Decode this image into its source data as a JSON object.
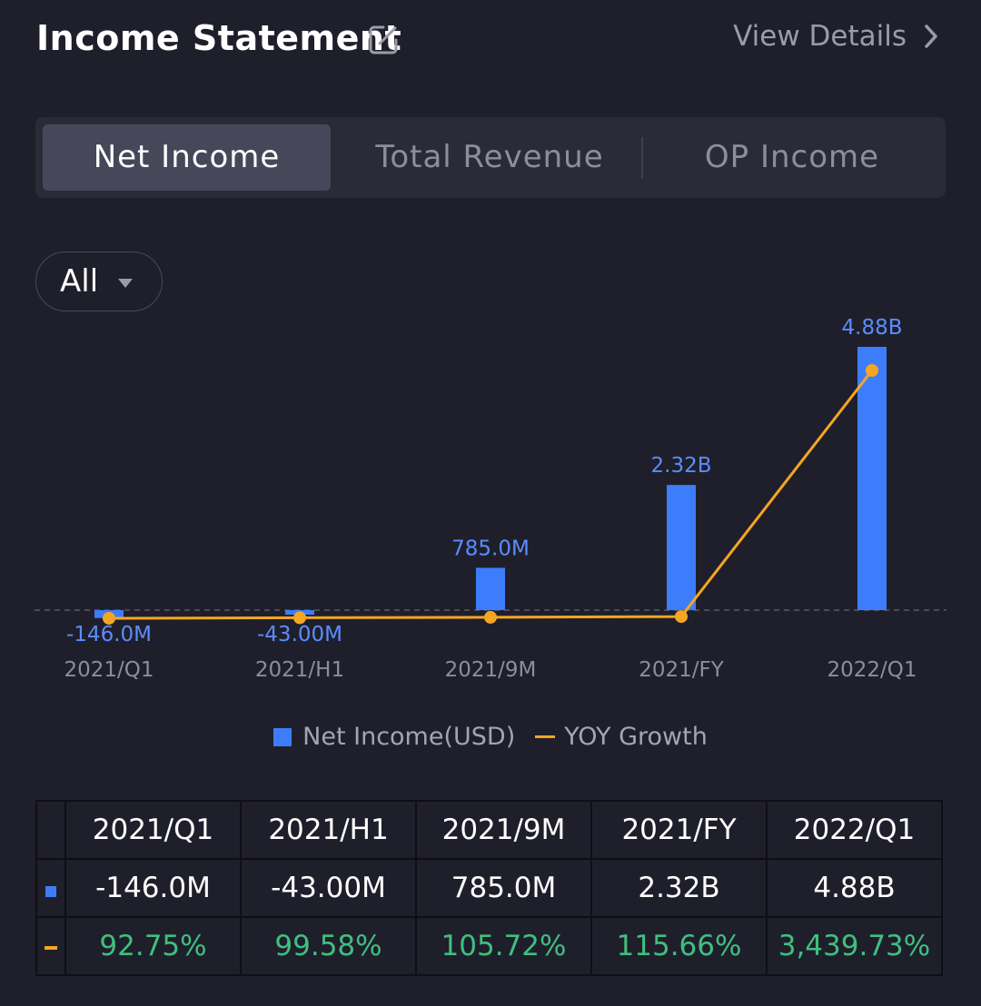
{
  "header": {
    "title": "Income Statement",
    "view_details": "View Details"
  },
  "tabs": [
    "Net Income",
    "Total Revenue",
    "OP Income"
  ],
  "active_tab": 0,
  "filter": {
    "selected": "All"
  },
  "legend": {
    "bar_label": "Net Income(USD)",
    "line_label": "YOY Growth"
  },
  "colors": {
    "bar": "#3d7dfb",
    "line": "#f5a623",
    "positive": "#3fbf7f"
  },
  "chart_data": {
    "type": "bar",
    "categories": [
      "2021/Q1",
      "2021/H1",
      "2021/9M",
      "2021/FY",
      "2022/Q1"
    ],
    "series": [
      {
        "name": "Net Income(USD)",
        "type": "bar",
        "values": [
          -146.0,
          -43.0,
          785.0,
          2320.0,
          4880.0
        ],
        "labels": [
          "-146.0M",
          "-43.00M",
          "785.0M",
          "2.32B",
          "4.88B"
        ]
      },
      {
        "name": "YOY Growth",
        "type": "line",
        "values": [
          92.75,
          99.58,
          105.72,
          115.66,
          3439.73
        ],
        "labels": [
          "92.75%",
          "99.58%",
          "105.72%",
          "115.66%",
          "3,439.73%"
        ]
      }
    ]
  },
  "table": {
    "columns": [
      "2021/Q1",
      "2021/H1",
      "2021/9M",
      "2021/FY",
      "2022/Q1"
    ],
    "net_income": [
      "-146.0M",
      "-43.00M",
      "785.0M",
      "2.32B",
      "4.88B"
    ],
    "yoy": [
      "92.75%",
      "99.58%",
      "105.72%",
      "115.66%",
      "3,439.73%"
    ]
  }
}
